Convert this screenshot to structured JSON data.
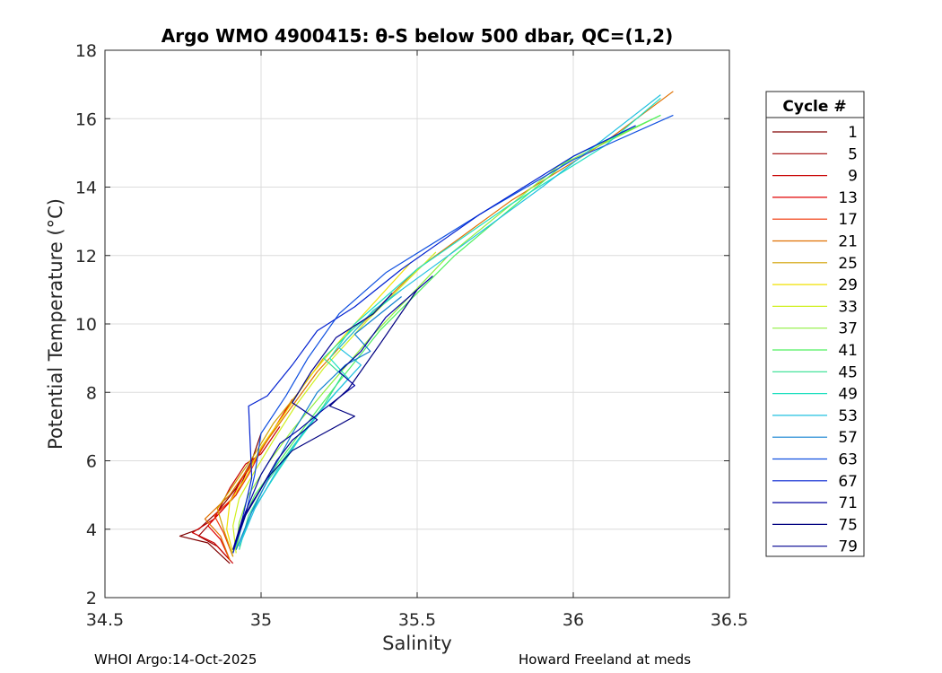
{
  "chart_data": {
    "type": "line",
    "title": "Argo WMO 4900415: θ-S below 500 dbar,  QC=(1,2)",
    "xlabel": "Salinity",
    "ylabel": "Potential Temperature (°C)",
    "xlim": [
      34.5,
      36.5
    ],
    "ylim": [
      2,
      18
    ],
    "xticks": [
      "34.5",
      "35",
      "35.5",
      "36",
      "36.5"
    ],
    "yticks": [
      "2",
      "4",
      "6",
      "8",
      "10",
      "12",
      "14",
      "16",
      "18"
    ],
    "xtick_values": [
      34.5,
      35,
      35.5,
      36,
      36.5
    ],
    "ytick_values": [
      2,
      4,
      6,
      8,
      10,
      12,
      14,
      16,
      18
    ],
    "grid": true,
    "legend": {
      "title": "Cycle #",
      "location": "right",
      "entries": [
        "1",
        "5",
        "9",
        "13",
        "17",
        "21",
        "25",
        "29",
        "33",
        "37",
        "41",
        "45",
        "49",
        "53",
        "57",
        "63",
        "67",
        "71",
        "75",
        "79"
      ],
      "colors": [
        "#800000",
        "#a00000",
        "#c80000",
        "#e00000",
        "#f03000",
        "#e07000",
        "#d0a000",
        "#f0e000",
        "#d0f020",
        "#90f040",
        "#50f060",
        "#30e090",
        "#20e0c0",
        "#20c0e0",
        "#1080d0",
        "#1050e0",
        "#0020d0",
        "#0000a0",
        "#000080",
        "#000090"
      ]
    },
    "series": [
      {
        "name": "1",
        "color": "#800000",
        "x": [
          34.9,
          34.83,
          34.74,
          34.8,
          34.86,
          34.92,
          34.97,
          35.0
        ],
        "y": [
          3.0,
          3.6,
          3.8,
          4.0,
          4.5,
          5.2,
          6.0,
          6.8
        ]
      },
      {
        "name": "5",
        "color": "#a00000",
        "x": [
          34.9,
          34.86,
          34.8,
          34.88,
          34.92,
          34.96,
          35.02,
          35.08
        ],
        "y": [
          3.1,
          3.5,
          3.8,
          4.6,
          5.0,
          5.8,
          6.6,
          7.5
        ]
      },
      {
        "name": "9",
        "color": "#c80000",
        "x": [
          34.91,
          34.85,
          34.78,
          34.85,
          34.9,
          34.95,
          35.0,
          35.06
        ],
        "y": [
          3.0,
          3.6,
          3.9,
          4.3,
          5.2,
          5.9,
          6.2,
          7.0
        ]
      },
      {
        "name": "13",
        "color": "#e00000",
        "x": [
          34.9,
          34.87,
          34.83,
          34.9,
          34.94,
          34.98,
          35.04,
          35.1
        ],
        "y": [
          3.1,
          3.7,
          4.1,
          4.8,
          5.5,
          6.0,
          6.9,
          7.8
        ]
      },
      {
        "name": "17",
        "color": "#f03000",
        "x": [
          34.91,
          34.88,
          34.85,
          34.92,
          34.96,
          35.0,
          35.06,
          35.12
        ],
        "y": [
          3.2,
          3.9,
          4.4,
          5.0,
          5.6,
          6.3,
          7.2,
          8.0
        ]
      },
      {
        "name": "21",
        "color": "#e07000",
        "x": [
          34.9,
          34.87,
          34.82,
          34.9,
          34.96,
          35.02,
          35.1,
          35.18,
          35.3,
          35.5,
          35.8,
          36.1,
          36.32
        ],
        "y": [
          3.1,
          3.8,
          4.3,
          5.0,
          5.8,
          6.6,
          7.6,
          8.6,
          9.8,
          11.6,
          13.6,
          15.3,
          16.8
        ]
      },
      {
        "name": "25",
        "color": "#d0a000",
        "x": [
          34.91,
          34.88,
          34.86,
          34.92,
          34.98,
          35.04,
          35.12,
          35.2
        ],
        "y": [
          3.2,
          4.0,
          4.6,
          5.4,
          6.2,
          7.1,
          8.0,
          9.0
        ]
      },
      {
        "name": "29",
        "color": "#f0e000",
        "x": [
          34.91,
          34.89,
          34.9,
          34.95,
          35.0,
          35.07,
          35.15,
          35.28,
          35.48
        ],
        "y": [
          3.3,
          4.0,
          4.8,
          5.5,
          6.4,
          7.3,
          8.4,
          9.8,
          11.8
        ]
      },
      {
        "name": "33",
        "color": "#d0f020",
        "x": [
          34.92,
          34.91,
          34.93,
          34.98,
          35.04,
          35.11,
          35.2,
          35.34,
          35.56
        ],
        "y": [
          3.3,
          4.1,
          4.9,
          5.7,
          6.6,
          7.6,
          8.7,
          10.1,
          12.1
        ]
      },
      {
        "name": "37",
        "color": "#90f040",
        "x": [
          34.92,
          34.93,
          34.96,
          35.02,
          35.1,
          35.2,
          35.35,
          35.6,
          35.95,
          36.28
        ],
        "y": [
          3.4,
          4.2,
          5.0,
          5.9,
          6.9,
          8.0,
          9.6,
          12.0,
          14.6,
          16.1
        ]
      },
      {
        "name": "41",
        "color": "#50f060",
        "x": [
          34.92,
          34.94,
          34.98,
          35.06,
          35.14,
          35.24,
          35.38,
          35.62,
          36.0,
          36.28
        ],
        "y": [
          3.4,
          4.2,
          5.0,
          6.0,
          7.0,
          8.2,
          9.8,
          12.0,
          14.9,
          16.1
        ]
      },
      {
        "name": "45",
        "color": "#30e090",
        "x": [
          34.93,
          34.96,
          35.02,
          35.1,
          35.2,
          35.26,
          35.2,
          35.3,
          35.45
        ],
        "y": [
          3.4,
          4.4,
          5.4,
          6.4,
          7.6,
          8.5,
          9.0,
          9.9,
          11.0
        ]
      },
      {
        "name": "49",
        "color": "#20e0c0",
        "x": [
          34.93,
          34.97,
          35.04,
          35.12,
          35.22,
          35.28,
          35.22,
          35.3,
          35.5,
          35.8,
          36.1,
          36.28
        ],
        "y": [
          3.5,
          4.5,
          5.5,
          6.6,
          7.8,
          8.4,
          9.0,
          10.0,
          11.6,
          13.5,
          15.2,
          16.6
        ]
      },
      {
        "name": "53",
        "color": "#20c0e0",
        "x": [
          34.93,
          34.98,
          35.05,
          35.14,
          35.24,
          35.32,
          35.25,
          35.36,
          35.6,
          35.9,
          36.28
        ],
        "y": [
          3.5,
          4.6,
          5.7,
          6.9,
          8.0,
          8.8,
          9.3,
          10.4,
          12.0,
          14.0,
          16.7
        ]
      },
      {
        "name": "57",
        "color": "#1080d0",
        "x": [
          34.92,
          34.97,
          35.03,
          35.1,
          35.18,
          35.27,
          35.35,
          35.3,
          35.45
        ],
        "y": [
          3.4,
          4.5,
          5.6,
          6.8,
          8.0,
          8.8,
          9.2,
          9.7,
          10.8
        ]
      },
      {
        "name": "63",
        "color": "#1050e0",
        "x": [
          34.91,
          34.95,
          34.98,
          35.0,
          35.08,
          35.15,
          35.25,
          35.4,
          35.7,
          36.0,
          36.32
        ],
        "y": [
          3.3,
          4.4,
          5.6,
          6.8,
          7.9,
          9.0,
          10.3,
          11.5,
          13.2,
          14.8,
          16.1
        ]
      },
      {
        "name": "67",
        "color": "#0020d0",
        "x": [
          34.91,
          34.94,
          34.97,
          34.96,
          35.02,
          35.1,
          35.18,
          35.3,
          35.45,
          35.7,
          36.0,
          36.2
        ],
        "y": [
          3.3,
          4.3,
          5.5,
          7.6,
          7.9,
          8.8,
          9.8,
          10.5,
          11.6,
          13.2,
          14.9,
          15.8
        ]
      },
      {
        "name": "71",
        "color": "#0000a0",
        "x": [
          34.91,
          34.95,
          35.0,
          35.06,
          35.12,
          35.2,
          35.3,
          35.25,
          35.32,
          35.4,
          35.55
        ],
        "y": [
          3.4,
          4.5,
          5.6,
          6.5,
          6.9,
          7.5,
          8.2,
          8.6,
          9.2,
          10.2,
          11.4
        ]
      },
      {
        "name": "75",
        "color": "#000080",
        "x": [
          34.91,
          34.95,
          35.02,
          35.1,
          35.2,
          35.3,
          35.22,
          35.28,
          35.38,
          35.5
        ],
        "y": [
          3.4,
          4.4,
          5.5,
          6.3,
          6.8,
          7.3,
          7.6,
          8.1,
          9.4,
          11.0
        ]
      },
      {
        "name": "79",
        "color": "#000090",
        "x": [
          34.91,
          34.94,
          35.0,
          35.05,
          35.1,
          35.18,
          35.1,
          35.16,
          35.24,
          35.36,
          35.42
        ],
        "y": [
          3.4,
          4.3,
          5.2,
          6.0,
          6.6,
          7.2,
          7.7,
          8.6,
          9.6,
          10.3,
          10.9
        ]
      }
    ]
  },
  "footer": {
    "left": "WHOI Argo:14-Oct-2025",
    "right": "Howard Freeland at meds"
  }
}
